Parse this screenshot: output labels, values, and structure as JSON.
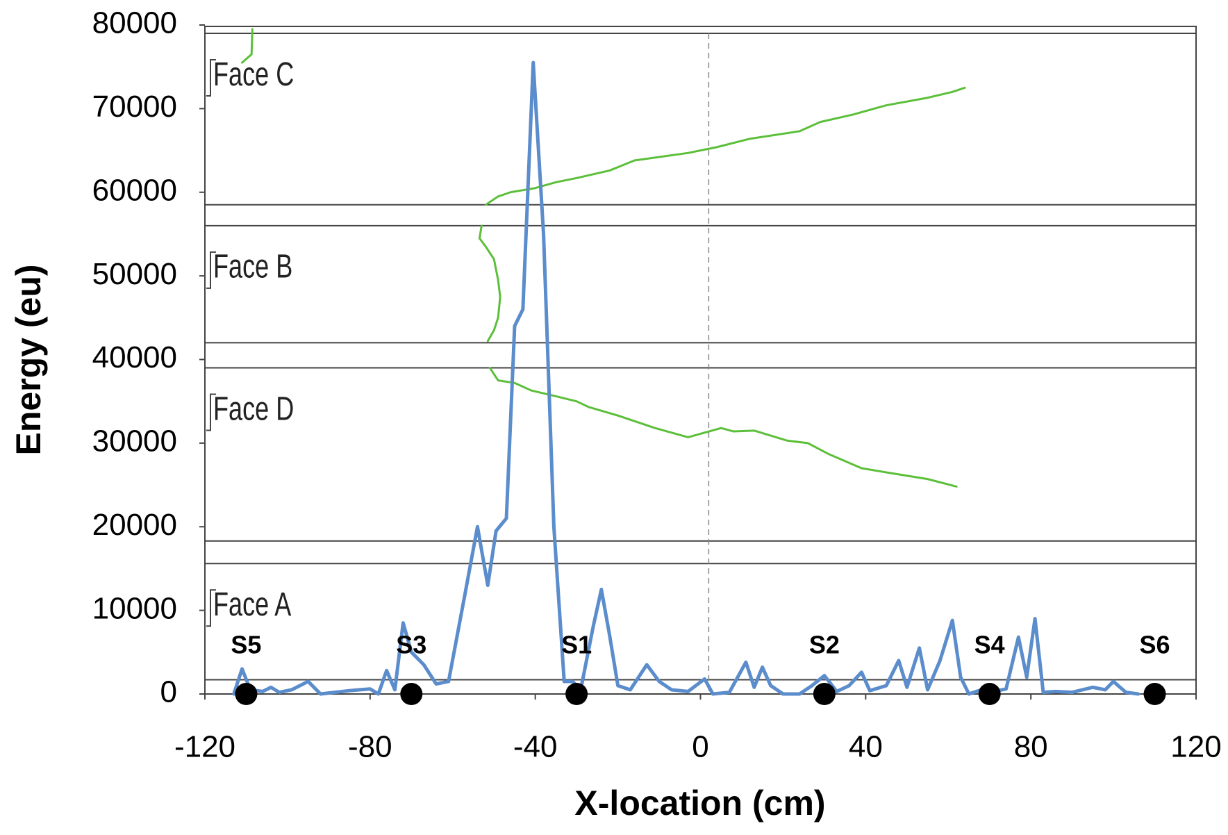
{
  "chart_data": {
    "type": "line",
    "x_label": "X-location (cm)",
    "y_label": "Energy (eu)",
    "xlim": [
      -120,
      120
    ],
    "ylim": [
      0,
      80000
    ],
    "xticks": [
      -120,
      -80,
      -40,
      0,
      40,
      80,
      120
    ],
    "yticks": [
      0,
      10000,
      20000,
      30000,
      40000,
      50000,
      60000,
      70000,
      80000
    ],
    "grid": false,
    "reference_x": 2,
    "faces": [
      {
        "label": "Face A",
        "lower": 1700,
        "upper": 15600
      },
      {
        "label": "Face D",
        "lower": 18300,
        "upper": 39000
      },
      {
        "label": "Face B",
        "lower": 42000,
        "upper": 56000
      },
      {
        "label": "Face C",
        "lower": 58500,
        "upper": 79000
      }
    ],
    "series": [
      {
        "color": "#5cbf3a",
        "width": 3,
        "x": [
          -108.5,
          -108.7,
          -111,
          null,
          -52,
          -49,
          -46,
          -40,
          -35,
          -30,
          -22,
          -16,
          -3,
          4,
          12,
          24,
          29,
          37,
          45,
          55,
          61,
          64,
          null,
          -53,
          -53.5,
          -52,
          -50,
          -49,
          -48.5,
          -49,
          -50,
          -51.5,
          null,
          -51,
          -49,
          -45,
          -41,
          -35,
          -30,
          -27,
          -20,
          -11,
          -3,
          5,
          8,
          13,
          21,
          26,
          31,
          39,
          45,
          55,
          62
        ],
        "values": [
          79500,
          76500,
          75500,
          null,
          58500,
          59500,
          60000,
          60500,
          61200,
          61700,
          62600,
          63800,
          64700,
          65400,
          66400,
          67300,
          68400,
          69300,
          70400,
          71300,
          72000,
          72500,
          null,
          56000,
          54500,
          53500,
          52000,
          49500,
          47500,
          45000,
          43500,
          42200,
          null,
          39000,
          37500,
          37200,
          36300,
          35600,
          35000,
          34300,
          33300,
          31800,
          30700,
          31800,
          31400,
          31500,
          30300,
          30000,
          28700,
          27000,
          26500,
          25700,
          24800
        ]
      },
      {
        "color": "#5b8ccc",
        "width": 5,
        "x": [
          -113,
          -111,
          -109,
          -106,
          -104,
          -102,
          -99,
          -95,
          -92,
          -85,
          -80,
          -78,
          -76,
          -74,
          -72,
          -70,
          -67,
          -64,
          -61,
          -57,
          -54,
          -51.5,
          -49.5,
          -47,
          -45,
          -43,
          -40.5,
          -38,
          -35.5,
          -33,
          -31,
          -29,
          -26,
          -24,
          -22,
          -20,
          -17,
          -13,
          -10,
          -7,
          -3,
          1,
          3,
          7,
          11,
          13,
          15,
          17,
          20,
          24,
          27,
          30,
          33,
          36,
          39,
          41,
          45,
          48,
          50,
          53,
          55,
          58,
          61,
          63,
          65,
          68,
          71,
          74,
          77,
          79,
          81,
          83,
          86,
          90,
          95,
          98,
          100,
          103,
          106
        ],
        "values": [
          0,
          3000,
          500,
          300,
          800,
          200,
          500,
          1500,
          0,
          400,
          600,
          0,
          2800,
          500,
          8500,
          5000,
          3500,
          1200,
          1500,
          12000,
          20000,
          13000,
          19500,
          21000,
          44000,
          46000,
          75500,
          55000,
          20000,
          1500,
          1500,
          500,
          8000,
          12500,
          7000,
          1000,
          500,
          3500,
          1500,
          500,
          300,
          1800,
          0,
          200,
          3800,
          800,
          3200,
          1000,
          0,
          0,
          1000,
          2200,
          300,
          1000,
          2600,
          400,
          1000,
          4000,
          800,
          5500,
          500,
          4000,
          8800,
          2000,
          0,
          500,
          300,
          600,
          6800,
          2000,
          9000,
          200,
          300,
          200,
          800,
          500,
          1500,
          200,
          0
        ]
      }
    ],
    "sensors": {
      "names": [
        "S5",
        "S3",
        "S1",
        "S2",
        "S4",
        "S6"
      ],
      "x": [
        -110,
        -70,
        -30,
        30,
        70,
        110
      ],
      "values": [
        0,
        0,
        0,
        0,
        0,
        0
      ],
      "color": "#000000"
    }
  }
}
